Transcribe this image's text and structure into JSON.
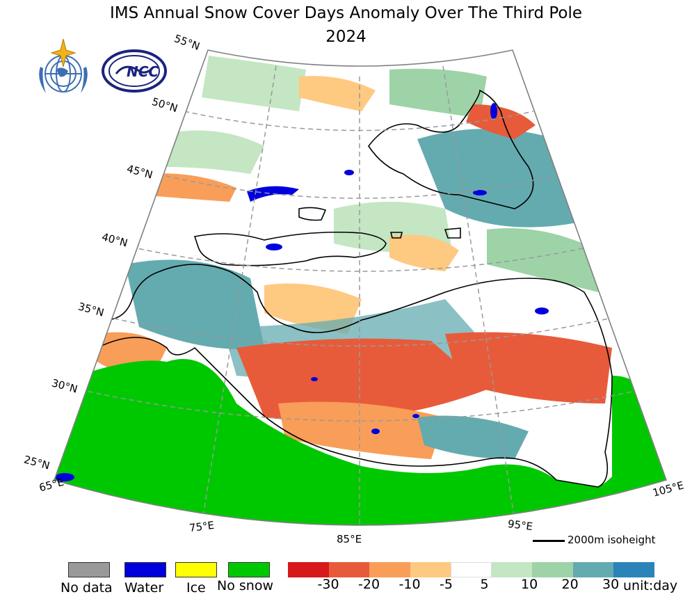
{
  "title": {
    "line1": "IMS Annual Snow Cover Days Anomaly Over The Third Pole",
    "line2": "2024"
  },
  "logos": {
    "left": "WMO emblem (globe with star and laurel)",
    "right_text": "NCC"
  },
  "graticule": {
    "latitudes": [
      "55°N",
      "50°N",
      "45°N",
      "40°N",
      "35°N",
      "30°N",
      "25°N"
    ],
    "longitudes": [
      "65°E",
      "75°E",
      "85°E",
      "95°E",
      "105°E"
    ]
  },
  "isoline_legend": "2000m isoheight",
  "category_legend": [
    {
      "label": "No data",
      "color": "#999999"
    },
    {
      "label": "Water",
      "color": "#0000dd"
    },
    {
      "label": "Ice",
      "color": "#ffff00"
    },
    {
      "label": "No snow",
      "color": "#00c800"
    }
  ],
  "colorbar": {
    "colors": [
      "#d7191c",
      "#e85b3a",
      "#f99e59",
      "#fec980",
      "#ffffff",
      "#c4e6c3",
      "#9dd3a7",
      "#64abb0",
      "#2b83ba"
    ],
    "ticks": [
      "-30",
      "-20",
      "-10",
      "-5",
      "5",
      "10",
      "20",
      "30"
    ],
    "unit": "unit:day"
  },
  "map_colors": {
    "no_snow": "#00c800",
    "water": "#0000dd",
    "border": "#000000",
    "gridline": "#999999"
  }
}
